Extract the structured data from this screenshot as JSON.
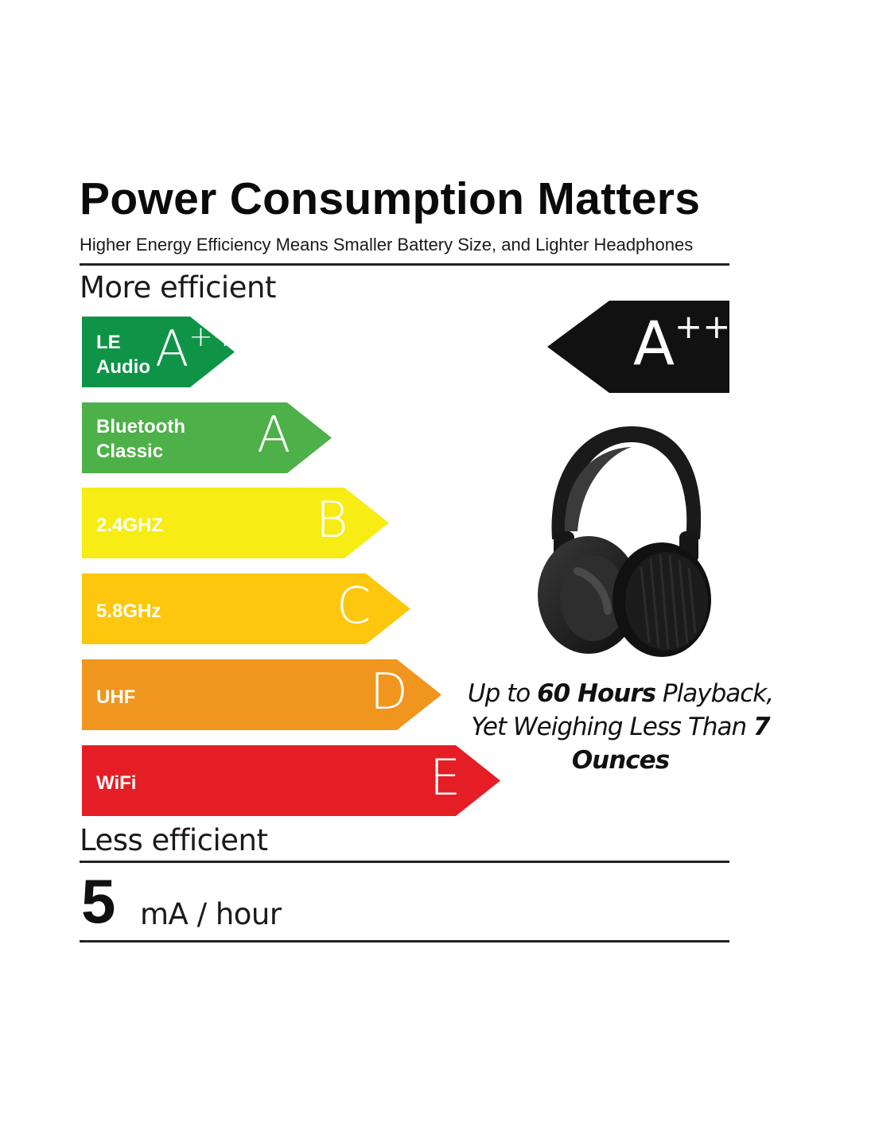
{
  "header": {
    "title": "Power Consumption Matters",
    "subtitle": "Higher Energy Efficiency Means Smaller Battery Size, and Lighter Headphones"
  },
  "scale": {
    "top_label": "More efficient",
    "bottom_label": "Less efficient",
    "bars": [
      {
        "name": "LE\nAudio",
        "grade": "A",
        "grade_sup": "++",
        "color": "#0f9447"
      },
      {
        "name": "Bluetooth\nClassic",
        "grade": "A",
        "grade_sup": "",
        "color": "#4db048"
      },
      {
        "name": "2.4GHZ",
        "grade": "B",
        "grade_sup": "",
        "color": "#f7ec13"
      },
      {
        "name": "5.8GHz",
        "grade": "C",
        "grade_sup": "",
        "color": "#fdc70e"
      },
      {
        "name": "UHF",
        "grade": "D",
        "grade_sup": "",
        "color": "#f0961f"
      },
      {
        "name": "WiFi",
        "grade": "E",
        "grade_sup": "",
        "color": "#e51e25"
      }
    ]
  },
  "rating": {
    "grade": "A",
    "grade_sup": "++",
    "color": "#111111"
  },
  "product": {
    "image": "headphones-icon"
  },
  "caption": {
    "line1_pre": "Up to ",
    "line1_bold": "60 Hours",
    "line1_post": " Playback,",
    "line2_pre": "Yet Weighing Less Than ",
    "line2_bold": "7 Ounces"
  },
  "consumption": {
    "value": "5",
    "unit": "mA / hour"
  }
}
